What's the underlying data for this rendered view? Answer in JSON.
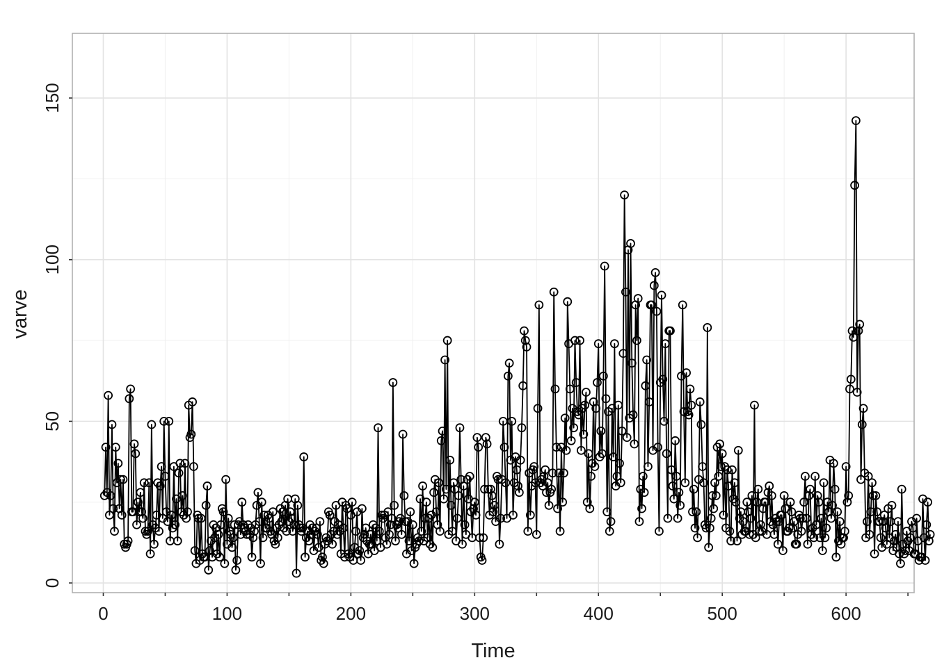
{
  "chart_data": {
    "type": "line",
    "markers": "open-circle",
    "xlabel": "Time",
    "ylabel": "varve",
    "xlim": [
      -25,
      655
    ],
    "ylim": [
      -3,
      170
    ],
    "x_ticks": [
      0,
      100,
      200,
      300,
      400,
      500,
      600
    ],
    "x_tick_labels": [
      "0",
      "100",
      "200",
      "300",
      "400",
      "500",
      "600"
    ],
    "y_ticks": [
      0,
      50,
      100,
      150
    ],
    "y_tick_labels": [
      "0",
      "50",
      "100",
      "150"
    ],
    "grid": true,
    "legend": "none",
    "series": [
      {
        "x_start": 1,
        "x_step": 1,
        "values": [
          27,
          42,
          28,
          58,
          21,
          27,
          49,
          23,
          16,
          42,
          31,
          37,
          23,
          32,
          21,
          32,
          12,
          11,
          12,
          13,
          57,
          60,
          22,
          22,
          43,
          40,
          18,
          25,
          22,
          28,
          22,
          20,
          31,
          16,
          15,
          16,
          31,
          9,
          49,
          18,
          12,
          17,
          21,
          31,
          16,
          30,
          36,
          20,
          50,
          33,
          22,
          19,
          50,
          13,
          21,
          17,
          36,
          18,
          26,
          13,
          34,
          37,
          22,
          27,
          21,
          37,
          20,
          22,
          55,
          45,
          46,
          56,
          36,
          10,
          6,
          21,
          20,
          7,
          20,
          9,
          8,
          8,
          24,
          30,
          4,
          10,
          13,
          8,
          18,
          14,
          17,
          9,
          15,
          8,
          18,
          23,
          22,
          6,
          32,
          12,
          20,
          16,
          15,
          11,
          14,
          18,
          4,
          7,
          18,
          19,
          15,
          25,
          18,
          17,
          16,
          15,
          18,
          15,
          17,
          8,
          14,
          16,
          18,
          24,
          28,
          19,
          6,
          25,
          14,
          21,
          17,
          17,
          21,
          20,
          16,
          15,
          22,
          13,
          12,
          17,
          14,
          18,
          23,
          19,
          22,
          17,
          24,
          16,
          26,
          19,
          22,
          20,
          16,
          18,
          26,
          3,
          24,
          18,
          17,
          16,
          17,
          39,
          8,
          14,
          16,
          13,
          18,
          15,
          17,
          10,
          16,
          17,
          15,
          11,
          19,
          7,
          8,
          6,
          12,
          14,
          13,
          22,
          21,
          15,
          12,
          16,
          19,
          24,
          15,
          18,
          16,
          9,
          25,
          17,
          8,
          24,
          23,
          9,
          8,
          21,
          25,
          7,
          11,
          16,
          22,
          9,
          10,
          7,
          23,
          14,
          15,
          17,
          13,
          9,
          12,
          15,
          12,
          18,
          10,
          17,
          13,
          48,
          16,
          11,
          21,
          20,
          21,
          14,
          12,
          22,
          15,
          18,
          20,
          62,
          24,
          13,
          18,
          17,
          19,
          20,
          15,
          46,
          27,
          19,
          9,
          19,
          13,
          22,
          10,
          18,
          6,
          11,
          12,
          14,
          13,
          26,
          16,
          30,
          13,
          20,
          25,
          14,
          20,
          12,
          21,
          11,
          28,
          32,
          22,
          18,
          31,
          16,
          44,
          47,
          26,
          69,
          29,
          75,
          15,
          38,
          24,
          16,
          31,
          29,
          13,
          20,
          27,
          48,
          32,
          12,
          30,
          18,
          15,
          32,
          26,
          33,
          22,
          14,
          23,
          25,
          21,
          45,
          42,
          14,
          8,
          7,
          14,
          29,
          45,
          43,
          29,
          21,
          29,
          27,
          22,
          24,
          19,
          33,
          32,
          12,
          20,
          32,
          50,
          42,
          31,
          20,
          64,
          68,
          38,
          50,
          21,
          31,
          39,
          35,
          30,
          28,
          38,
          48,
          61,
          78,
          75,
          73,
          16,
          34,
          21,
          30,
          35,
          36,
          31,
          15,
          54,
          86,
          31,
          32,
          30,
          33,
          35,
          28,
          31,
          24,
          28,
          29,
          34,
          90,
          60,
          42,
          23,
          34,
          16,
          42,
          25,
          34,
          51,
          41,
          87,
          74,
          60,
          44,
          54,
          48,
          75,
          62,
          53,
          52,
          75,
          41,
          54,
          46,
          55,
          59,
          25,
          40,
          23,
          33,
          37,
          56,
          36,
          54,
          62,
          74,
          39,
          47,
          40,
          64,
          98,
          57,
          22,
          53,
          16,
          19,
          54,
          39,
          74,
          30,
          33,
          55,
          37,
          31,
          47,
          71,
          120,
          90,
          45,
          103,
          51,
          105,
          68,
          52,
          43,
          86,
          75,
          88,
          19,
          29,
          23,
          33,
          28,
          61,
          69,
          36,
          56,
          86,
          86,
          41,
          92,
          96,
          84,
          42,
          16,
          62,
          89,
          63,
          50,
          74,
          40,
          20,
          78,
          78,
          35,
          30,
          26,
          44,
          33,
          20,
          28,
          24,
          64,
          86,
          53,
          31,
          65,
          53,
          52,
          60,
          55,
          22,
          29,
          17,
          22,
          14,
          32,
          56,
          49,
          36,
          31,
          18,
          17,
          79,
          11,
          17,
          20,
          27,
          23,
          31,
          27,
          42,
          33,
          43,
          36,
          40,
          21,
          36,
          17,
          35,
          30,
          16,
          13,
          35,
          26,
          31,
          25,
          13,
          41,
          20,
          22,
          15,
          19,
          16,
          16,
          25,
          22,
          15,
          20,
          27,
          15,
          55,
          14,
          25,
          29,
          16,
          18,
          16,
          23,
          25,
          25,
          15,
          28,
          30,
          19,
          27,
          18,
          15,
          20,
          19,
          12,
          19,
          21,
          21,
          10,
          27,
          23,
          16,
          16,
          17,
          25,
          22,
          17,
          19,
          12,
          12,
          15,
          21,
          20,
          16,
          20,
          25,
          33,
          20,
          12,
          27,
          29,
          15,
          17,
          14,
          33,
          18,
          27,
          25,
          14,
          20,
          10,
          31,
          14,
          17,
          25,
          22,
          38,
          20,
          24,
          37,
          29,
          8,
          22,
          13,
          19,
          12,
          14,
          14,
          16,
          36,
          25,
          27,
          60,
          63,
          78,
          76,
          123,
          143,
          59,
          78,
          80,
          32,
          49,
          54,
          34,
          14,
          19,
          33,
          15,
          22,
          31,
          27,
          9,
          27,
          22,
          19,
          19,
          14,
          11,
          19,
          21,
          17,
          12,
          23,
          14,
          19,
          24,
          10,
          13,
          15,
          11,
          19,
          9,
          6,
          29,
          12,
          9,
          10,
          16,
          13,
          10,
          14,
          19,
          17,
          9,
          9,
          20,
          13,
          7,
          8,
          8,
          26,
          14,
          7,
          18,
          25,
          13,
          15
        ]
      }
    ]
  }
}
